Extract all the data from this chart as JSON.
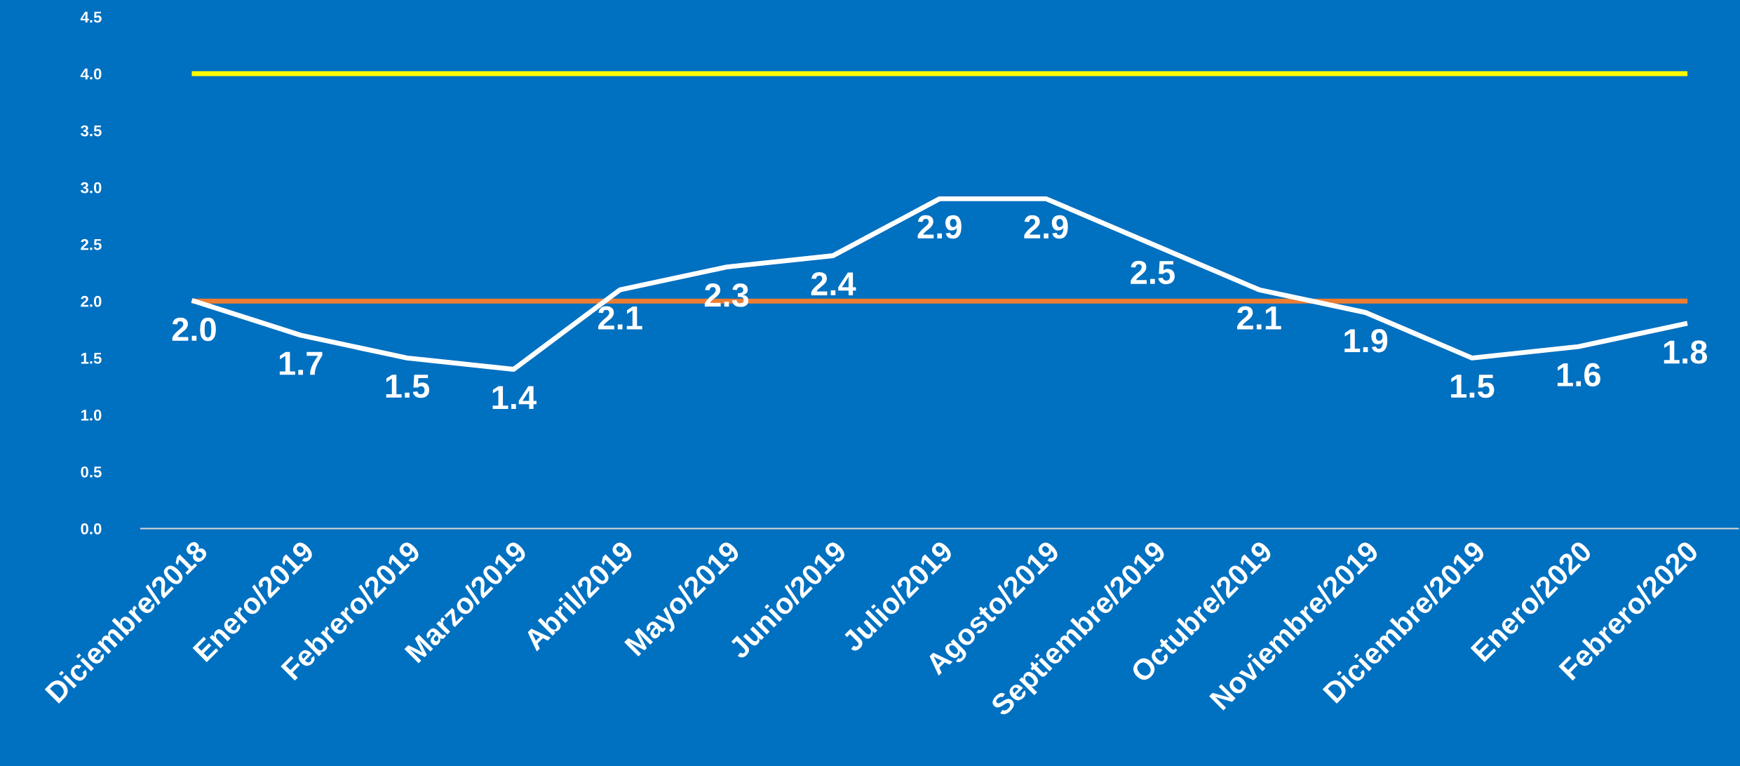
{
  "chart_data": {
    "type": "line",
    "categories": [
      "Diciembre/2018",
      "Enero/2019",
      "Febrero/2019",
      "Marzo/2019",
      "Abril/2019",
      "Mayo/2019",
      "Junio/2019",
      "Julio/2019",
      "Agosto/2019",
      "Septiembre/2019",
      "Octubre/2019",
      "Noviembre/2019",
      "Diciembre/2019",
      "Enero/2020",
      "Febrero/2020"
    ],
    "series": [
      {
        "color": "#ffffff",
        "values": [
          2.0,
          1.7,
          1.5,
          1.4,
          2.1,
          2.3,
          2.4,
          2.9,
          2.9,
          2.5,
          2.1,
          1.9,
          1.5,
          1.6,
          1.8
        ],
        "value_labels": [
          "2.0",
          "1.7",
          "1.5",
          "1.4",
          "2.1",
          "2.3",
          "2.4",
          "2.9",
          "2.9",
          "2.5",
          "2.1",
          "1.9",
          "1.5",
          "1.6",
          "1.8"
        ]
      },
      {
        "color": "#ffff00",
        "values": [
          4.0,
          4.0,
          4.0,
          4.0,
          4.0,
          4.0,
          4.0,
          4.0,
          4.0,
          4.0,
          4.0,
          4.0,
          4.0,
          4.0,
          4.0
        ]
      },
      {
        "color": "#ed7d31",
        "values": [
          2.0,
          2.0,
          2.0,
          2.0,
          2.0,
          2.0,
          2.0,
          2.0,
          2.0,
          2.0,
          2.0,
          2.0,
          2.0,
          2.0,
          2.0
        ]
      }
    ],
    "ylim": [
      0,
      4.5
    ],
    "yticks": [
      {
        "value": 0,
        "label": "0.0"
      },
      {
        "value": 0.5,
        "label": "0.5"
      },
      {
        "value": 1,
        "label": "1.0"
      },
      {
        "value": 1.5,
        "label": "1.5"
      },
      {
        "value": 2,
        "label": "2.0"
      },
      {
        "value": 2.5,
        "label": "2.5"
      },
      {
        "value": 3,
        "label": "3.0"
      },
      {
        "value": 3.5,
        "label": "3.5"
      },
      {
        "value": 4,
        "label": "4.0"
      },
      {
        "value": 4.5,
        "label": "4.5"
      }
    ],
    "grid": false,
    "legend": false,
    "marker": "none",
    "line_style": "solid"
  }
}
